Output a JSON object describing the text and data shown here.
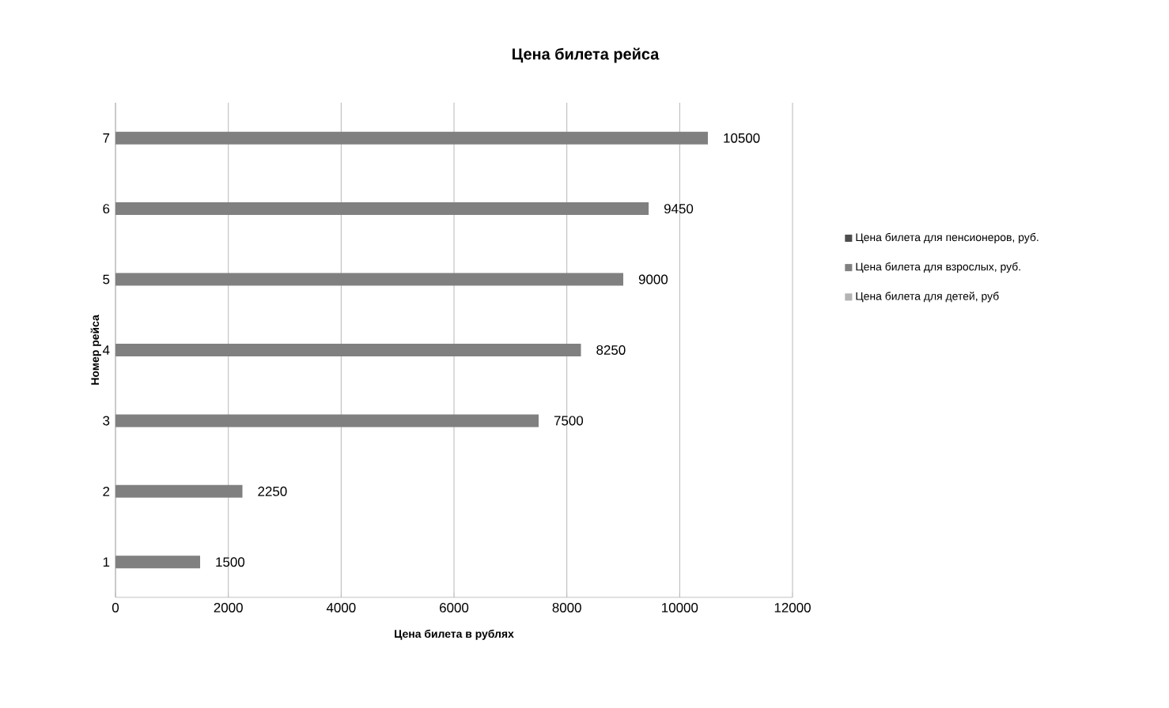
{
  "chart_data": {
    "type": "bar",
    "orientation": "horizontal",
    "title": "Цена билета рейса",
    "xlabel": "Цена билета в рублях",
    "ylabel": "Номер рейса",
    "categories": [
      "7",
      "6",
      "5",
      "4",
      "3",
      "2",
      "1"
    ],
    "series": [
      {
        "name": "Цена билета для пенсионеров, руб.",
        "color": "#4d4d4d",
        "values": [
          null,
          null,
          null,
          null,
          null,
          null,
          null
        ]
      },
      {
        "name": "Цена билета для взрослых, руб.",
        "color": "#808080",
        "values": [
          10500,
          9450,
          9000,
          8250,
          7500,
          2250,
          1500
        ]
      },
      {
        "name": "Цена билета для детей, руб",
        "color": "#b3b3b3",
        "values": [
          null,
          null,
          null,
          null,
          null,
          null,
          null
        ]
      }
    ],
    "xlim": [
      0,
      12000
    ],
    "xticks": [
      0,
      2000,
      4000,
      6000,
      8000,
      10000,
      12000
    ],
    "grid": "x",
    "legend": "right",
    "data_labels": true
  }
}
